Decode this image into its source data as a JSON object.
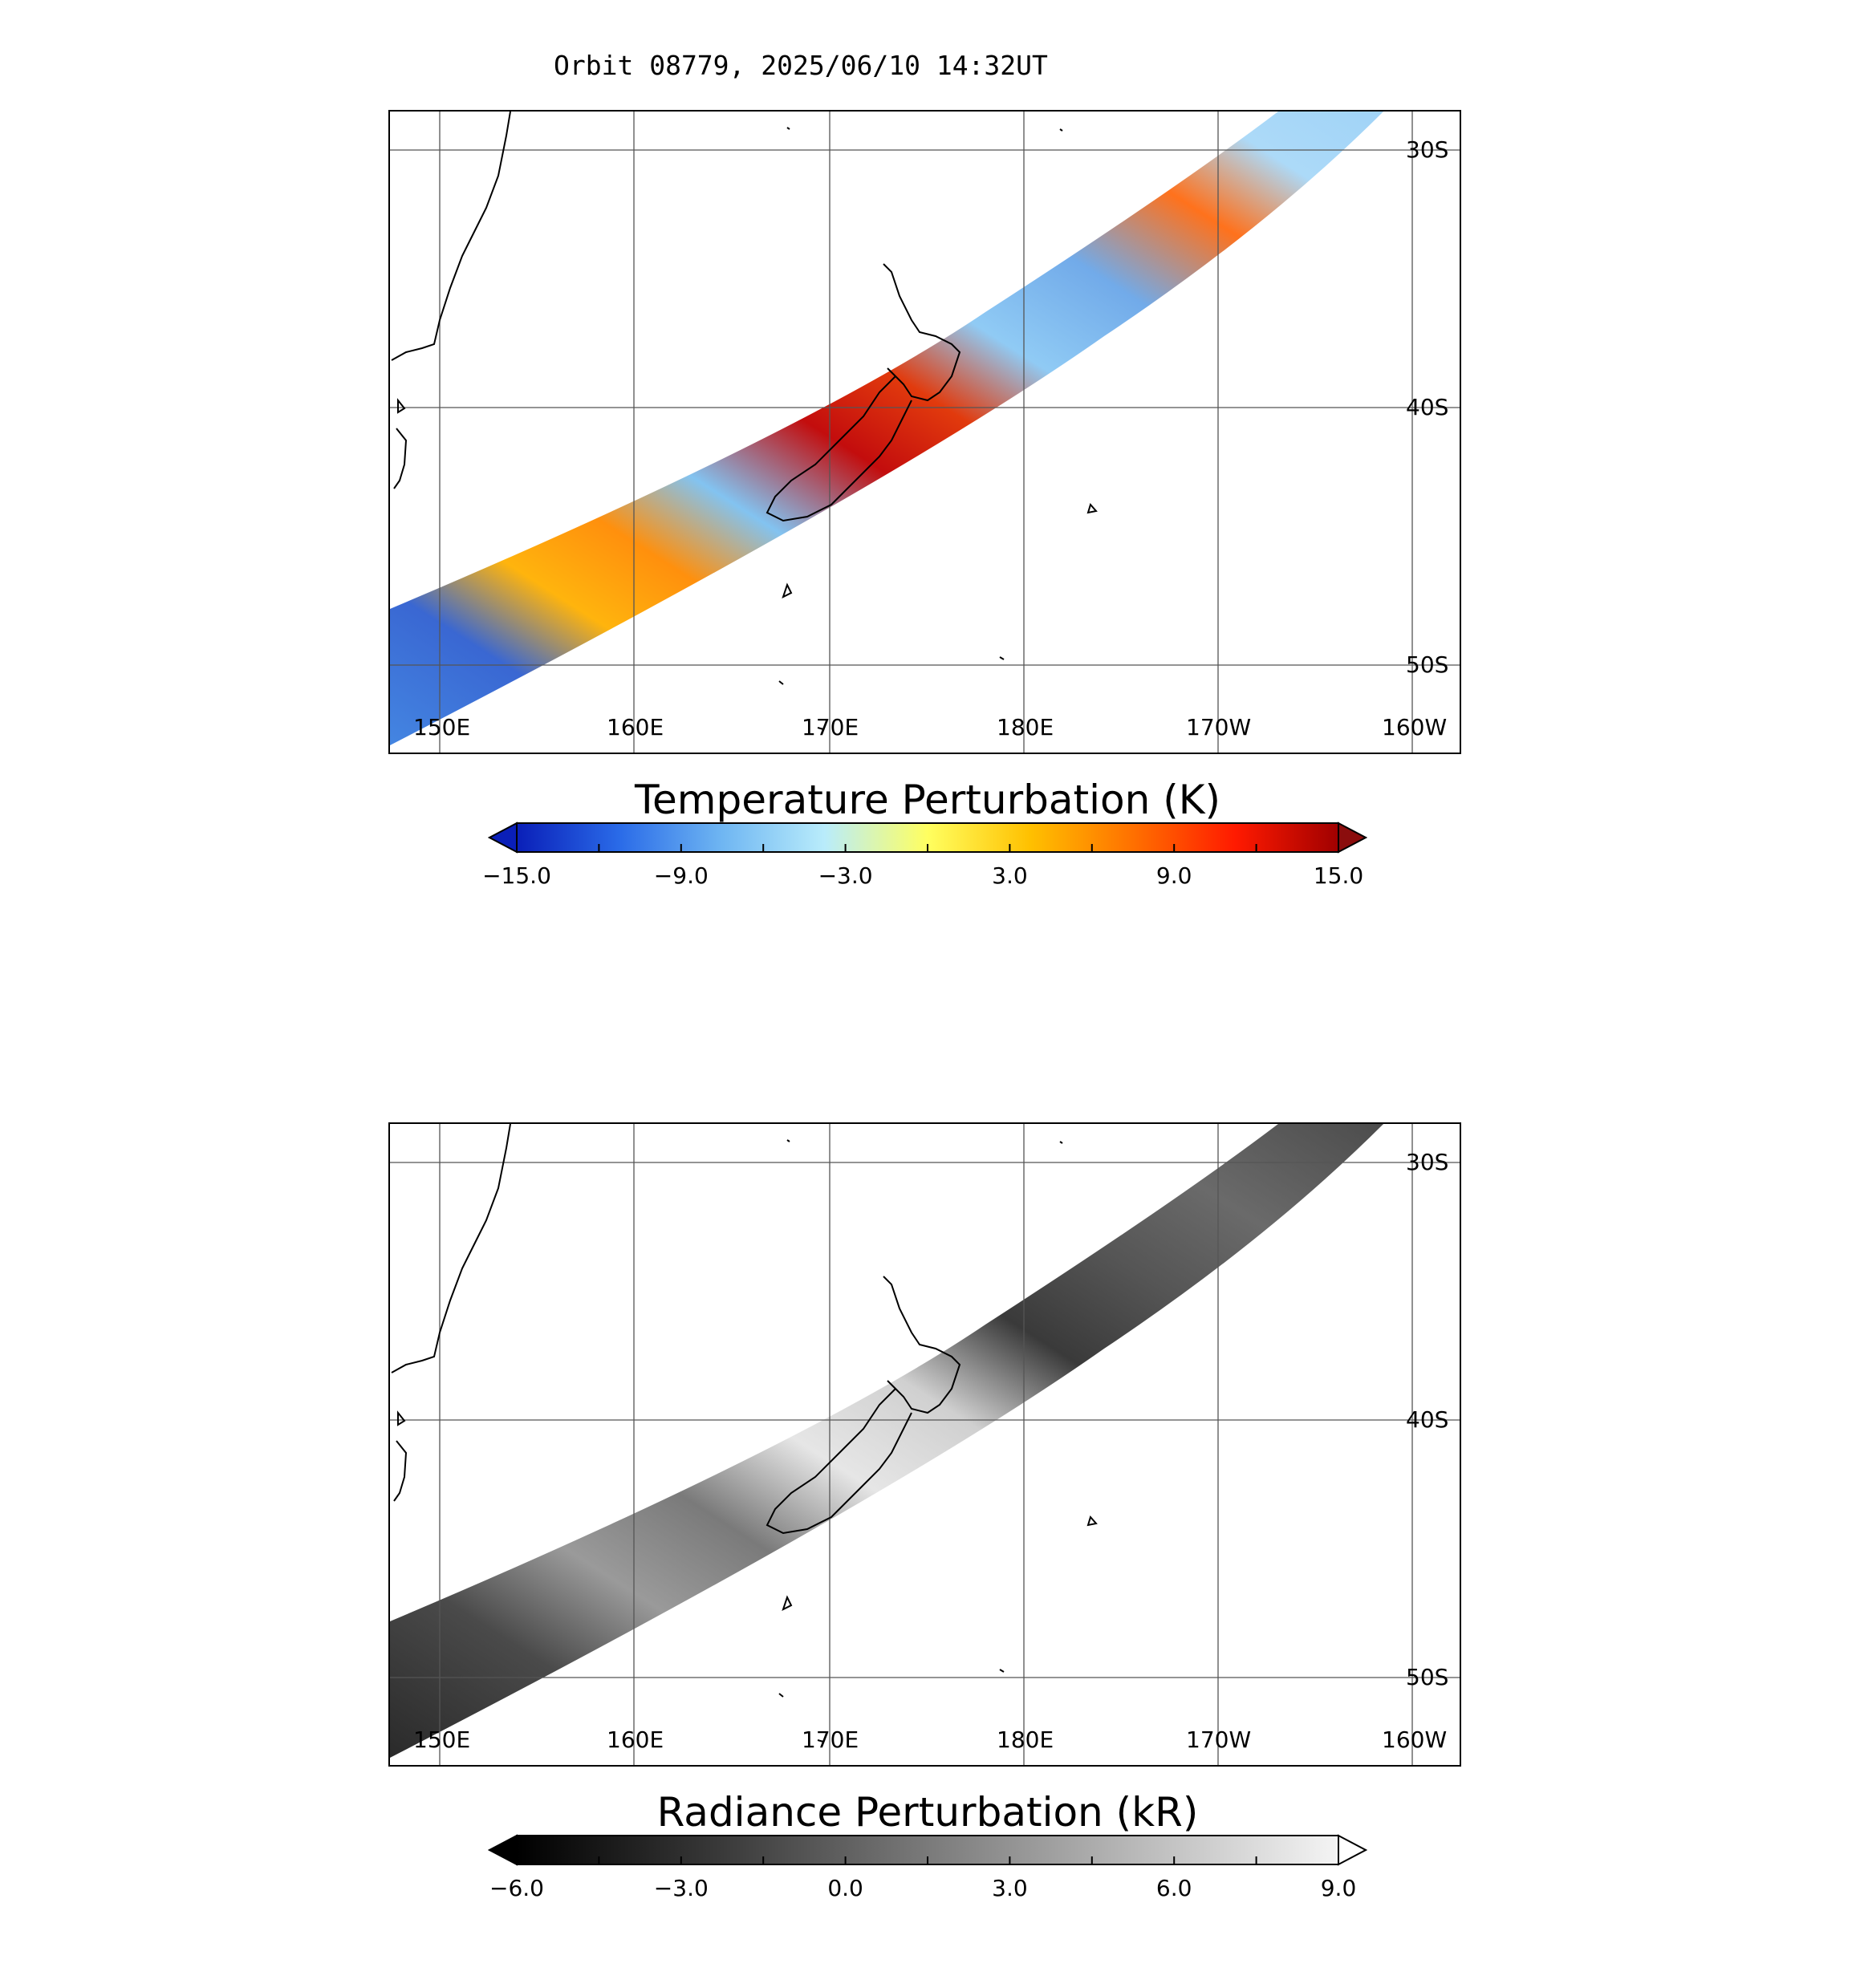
{
  "title": "Orbit 08779, 2025/06/10 14:32UT",
  "map_axes": {
    "lon_labels": [
      "150E",
      "160E",
      "170E",
      "180E",
      "170W",
      "160W"
    ],
    "lat_labels": [
      "30S",
      "40S",
      "50S"
    ]
  },
  "panels": [
    {
      "id": "temperature",
      "colorbar_title": "Temperature Perturbation (K)",
      "colorbar_ticks": [
        "−15.0",
        "−9.0",
        "−3.0",
        "3.0",
        "9.0",
        "15.0"
      ],
      "colormap": [
        "#0a1fb8",
        "#2a6be8",
        "#6fb6f2",
        "#b9ecfb",
        "#ffff60",
        "#ffc000",
        "#ff7000",
        "#ff1a00",
        "#a00000"
      ],
      "under_color": "#0a1fb8",
      "over_color": "#8b0d0d"
    },
    {
      "id": "radiance",
      "colorbar_title": "Radiance Perturbation (kR)",
      "colorbar_ticks": [
        "−6.0",
        "−3.0",
        "0.0",
        "3.0",
        "6.0",
        "9.0"
      ],
      "colormap": [
        "#000000",
        "#3a3a3a",
        "#7a7a7a",
        "#b8b8b8",
        "#f4f4f4"
      ],
      "under_color": "#000000",
      "over_color": "#ffffff"
    }
  ]
}
